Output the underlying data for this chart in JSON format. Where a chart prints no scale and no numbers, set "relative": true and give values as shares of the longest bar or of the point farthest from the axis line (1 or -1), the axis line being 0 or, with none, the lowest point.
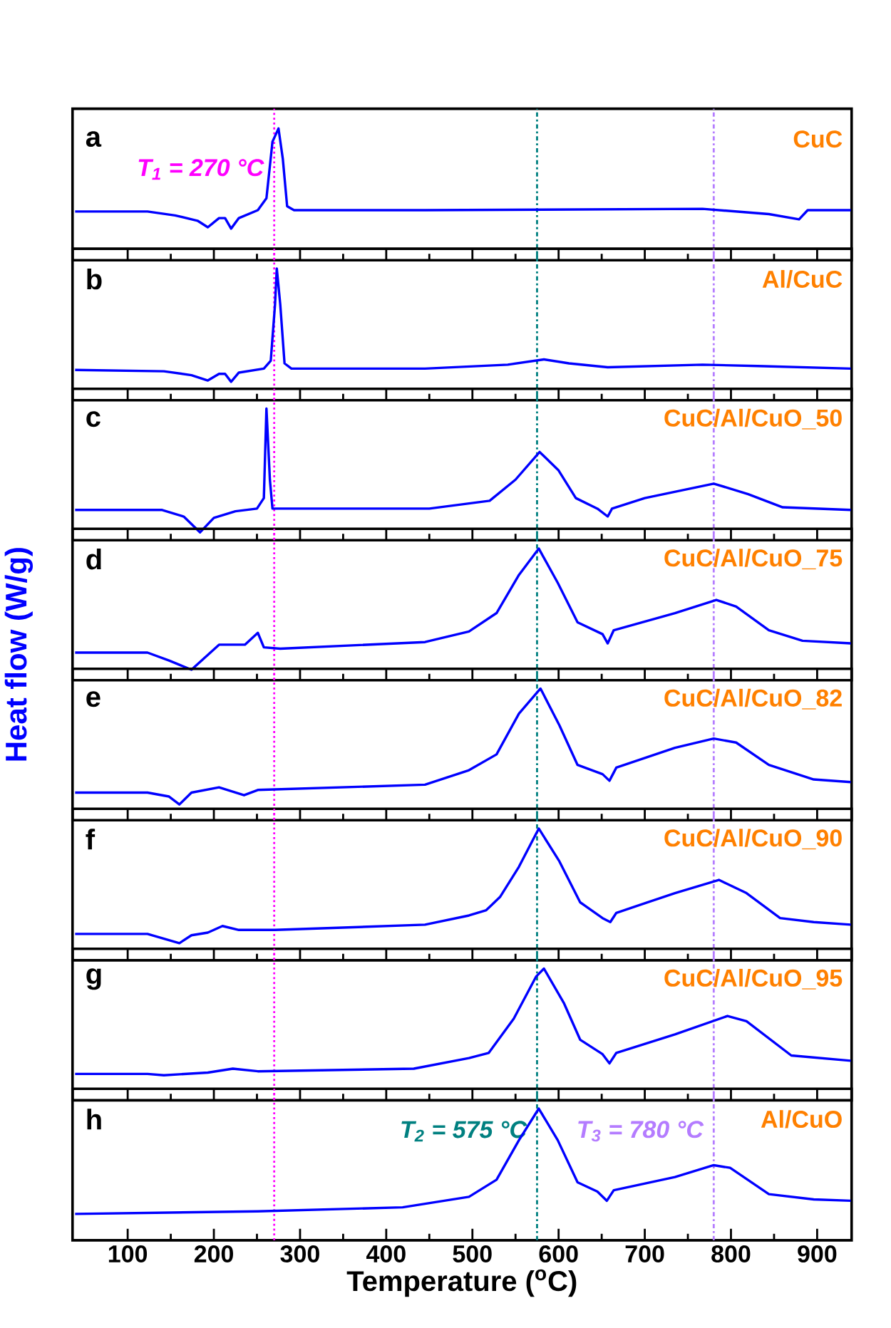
{
  "chart_data": [
    {
      "type": "line",
      "title": "a",
      "relative": true,
      "xlim": [
        36,
        940
      ],
      "xticks": [
        100,
        200,
        300,
        400,
        500,
        600,
        700,
        800,
        900
      ],
      "tick_labels": false,
      "x": [
        39,
        123,
        155,
        181,
        193,
        206,
        213,
        220,
        229,
        251,
        261,
        268,
        275,
        280,
        285,
        293,
        445,
        767,
        844,
        879,
        889,
        939
      ],
      "series": [
        {
          "name": "CuC",
          "color": "#0000ff",
          "values": [
            0.37,
            0.37,
            0.34,
            0.3,
            0.25,
            0.32,
            0.32,
            0.24,
            0.32,
            0.38,
            0.47,
            0.9,
            1,
            0.77,
            0.41,
            0.38,
            0.38,
            0.39,
            0.35,
            0.31,
            0.38,
            0.38
          ]
        }
      ],
      "ref_lines": [
        {
          "axis": "x",
          "value": 270,
          "color": "#ff00ff",
          "line_style": "dotted",
          "label": "T$_{1}$ = 270 °C"
        },
        {
          "axis": "x",
          "value": 575,
          "color": "#008080",
          "line_style": "dashdot"
        },
        {
          "axis": "x",
          "value": 780,
          "color": "#b47cff",
          "line_style": "dashdot"
        }
      ]
    },
    {
      "type": "line",
      "title": "b",
      "relative": true,
      "xlim": [
        36,
        940
      ],
      "xticks": [
        100,
        200,
        300,
        400,
        500,
        600,
        700,
        800,
        900
      ],
      "tick_labels": false,
      "x": [
        39,
        142,
        174,
        193,
        206,
        213,
        220,
        229,
        258,
        266,
        271,
        273,
        277,
        282,
        290,
        445,
        541,
        583,
        612,
        657,
        767,
        831,
        939
      ],
      "series": [
        {
          "name": "Al/CuC",
          "color": "#0000ff",
          "values": [
            0.23,
            0.22,
            0.19,
            0.15,
            0.2,
            0.2,
            0.14,
            0.21,
            0.24,
            0.3,
            0.73,
            1,
            0.73,
            0.28,
            0.24,
            0.24,
            0.27,
            0.31,
            0.28,
            0.25,
            0.27,
            0.26,
            0.24
          ]
        }
      ],
      "ref_lines": [
        {
          "axis": "x",
          "value": 270,
          "color": "#ff00ff",
          "line_style": "dotted"
        },
        {
          "axis": "x",
          "value": 575,
          "color": "#008080",
          "line_style": "dashdot"
        },
        {
          "axis": "x",
          "value": 780,
          "color": "#b47cff",
          "line_style": "dashdot"
        }
      ]
    },
    {
      "type": "line",
      "title": "c",
      "relative": true,
      "xlim": [
        36,
        940
      ],
      "xticks": [
        100,
        200,
        300,
        400,
        500,
        600,
        700,
        800,
        900
      ],
      "tick_labels": false,
      "x": [
        39,
        140,
        165,
        184,
        200,
        225,
        250,
        258,
        261,
        265,
        268,
        300,
        450,
        520,
        550,
        578,
        600,
        620,
        645,
        657,
        662,
        700,
        780,
        820,
        860,
        939
      ],
      "series": [
        {
          "name": "CuC/Al/CuO_50",
          "color": "#0000ff",
          "values": [
            0.23,
            0.23,
            0.18,
            0.06,
            0.17,
            0.22,
            0.24,
            0.32,
            1,
            0.46,
            0.24,
            0.24,
            0.24,
            0.3,
            0.46,
            0.67,
            0.53,
            0.32,
            0.24,
            0.18,
            0.24,
            0.32,
            0.43,
            0.35,
            0.25,
            0.23
          ]
        }
      ],
      "ref_lines": [
        {
          "axis": "x",
          "value": 270,
          "color": "#ff00ff",
          "line_style": "dotted"
        },
        {
          "axis": "x",
          "value": 575,
          "color": "#008080",
          "line_style": "dashdot"
        },
        {
          "axis": "x",
          "value": 780,
          "color": "#b47cff",
          "line_style": "dashdot"
        }
      ]
    },
    {
      "type": "line",
      "title": "d",
      "ylabel": "Heat flow (W/g)",
      "relative": true,
      "xlim": [
        36,
        940
      ],
      "xticks": [
        100,
        200,
        300,
        400,
        500,
        600,
        700,
        800,
        900
      ],
      "tick_labels": false,
      "x": [
        39,
        123,
        148,
        174,
        206,
        236,
        251,
        258,
        277,
        445,
        496,
        528,
        554,
        577,
        599,
        622,
        651,
        657,
        664,
        735,
        783,
        806,
        844,
        883,
        939
      ],
      "series": [
        {
          "name": "CuC/Al/CuO_75",
          "color": "#0000ff",
          "values": [
            0.21,
            0.21,
            0.15,
            0.08,
            0.27,
            0.27,
            0.36,
            0.25,
            0.24,
            0.29,
            0.37,
            0.51,
            0.8,
            1,
            0.74,
            0.44,
            0.35,
            0.28,
            0.38,
            0.51,
            0.61,
            0.56,
            0.38,
            0.3,
            0.28
          ]
        }
      ],
      "ref_lines": [
        {
          "axis": "x",
          "value": 270,
          "color": "#ff00ff",
          "line_style": "dotted"
        },
        {
          "axis": "x",
          "value": 575,
          "color": "#008080",
          "line_style": "dashdot"
        },
        {
          "axis": "x",
          "value": 780,
          "color": "#b47cff",
          "line_style": "dashdot"
        }
      ]
    },
    {
      "type": "line",
      "title": "e",
      "relative": true,
      "xlim": [
        36,
        940
      ],
      "xticks": [
        100,
        200,
        300,
        400,
        500,
        600,
        700,
        800,
        900
      ],
      "tick_labels": false,
      "x": [
        39,
        123,
        148,
        160,
        174,
        206,
        235,
        251,
        445,
        496,
        528,
        554,
        579,
        601,
        622,
        651,
        659,
        667,
        735,
        780,
        806,
        844,
        896,
        939
      ],
      "series": [
        {
          "name": "CuC/Al/CuO_82",
          "color": "#0000ff",
          "values": [
            0.21,
            0.21,
            0.18,
            0.12,
            0.21,
            0.25,
            0.19,
            0.23,
            0.27,
            0.38,
            0.5,
            0.81,
            1,
            0.72,
            0.42,
            0.35,
            0.3,
            0.4,
            0.55,
            0.62,
            0.59,
            0.42,
            0.31,
            0.29
          ]
        }
      ],
      "ref_lines": [
        {
          "axis": "x",
          "value": 270,
          "color": "#ff00ff",
          "line_style": "dotted"
        },
        {
          "axis": "x",
          "value": 575,
          "color": "#008080",
          "line_style": "dashdot"
        },
        {
          "axis": "x",
          "value": 780,
          "color": "#b47cff",
          "line_style": "dashdot"
        }
      ]
    },
    {
      "type": "line",
      "title": "f",
      "relative": true,
      "xlim": [
        36,
        940
      ],
      "xticks": [
        100,
        200,
        300,
        400,
        500,
        600,
        700,
        800,
        900
      ],
      "tick_labels": false,
      "x": [
        39,
        123,
        160,
        174,
        193,
        210,
        229,
        271,
        445,
        496,
        516,
        532,
        554,
        577,
        601,
        625,
        651,
        660,
        667,
        735,
        786,
        818,
        857,
        896,
        939
      ],
      "series": [
        {
          "name": "CuC/Al/CuO_90",
          "color": "#0000ff",
          "values": [
            0.2,
            0.2,
            0.13,
            0.19,
            0.21,
            0.26,
            0.23,
            0.23,
            0.27,
            0.34,
            0.38,
            0.48,
            0.71,
            1,
            0.75,
            0.44,
            0.32,
            0.29,
            0.36,
            0.51,
            0.61,
            0.51,
            0.32,
            0.29,
            0.27
          ]
        }
      ],
      "ref_lines": [
        {
          "axis": "x",
          "value": 270,
          "color": "#ff00ff",
          "line_style": "dotted"
        },
        {
          "axis": "x",
          "value": 575,
          "color": "#008080",
          "line_style": "dashdot"
        },
        {
          "axis": "x",
          "value": 780,
          "color": "#b47cff",
          "line_style": "dashdot"
        }
      ]
    },
    {
      "type": "line",
      "title": "g",
      "relative": true,
      "xlim": [
        36,
        940
      ],
      "xticks": [
        100,
        200,
        300,
        400,
        500,
        600,
        700,
        800,
        900
      ],
      "tick_labels": false,
      "x": [
        39,
        123,
        142,
        193,
        222,
        251,
        432,
        496,
        519,
        548,
        574,
        583,
        606,
        625,
        651,
        659,
        667,
        735,
        796,
        818,
        870,
        939
      ],
      "series": [
        {
          "name": "CuC/Al/CuO_95",
          "color": "#0000ff",
          "values": [
            0.2,
            0.2,
            0.19,
            0.21,
            0.24,
            0.22,
            0.24,
            0.32,
            0.36,
            0.62,
            0.94,
            1,
            0.74,
            0.46,
            0.35,
            0.28,
            0.36,
            0.5,
            0.64,
            0.6,
            0.34,
            0.3
          ]
        }
      ],
      "ref_lines": [
        {
          "axis": "x",
          "value": 270,
          "color": "#ff00ff",
          "line_style": "dotted"
        },
        {
          "axis": "x",
          "value": 575,
          "color": "#008080",
          "line_style": "dashdot"
        },
        {
          "axis": "x",
          "value": 780,
          "color": "#b47cff",
          "line_style": "dashdot"
        }
      ]
    },
    {
      "type": "line",
      "title": "h",
      "xlabel": "Temperature ($^{o}$C)",
      "relative": true,
      "xlim": [
        36,
        940
      ],
      "xticks": [
        100,
        200,
        300,
        400,
        500,
        600,
        700,
        800,
        900
      ],
      "tick_labels": "x",
      "x": [
        39,
        251,
        419,
        496,
        528,
        554,
        577,
        599,
        622,
        645,
        656,
        664,
        735,
        780,
        799,
        844,
        896,
        939
      ],
      "series": [
        {
          "name": "Al/CuO",
          "color": "#0000ff",
          "values": [
            0.2,
            0.22,
            0.25,
            0.33,
            0.46,
            0.76,
            1,
            0.76,
            0.44,
            0.37,
            0.3,
            0.38,
            0.48,
            0.57,
            0.55,
            0.35,
            0.31,
            0.3
          ]
        }
      ],
      "ref_lines": [
        {
          "axis": "x",
          "value": 270,
          "color": "#ff00ff",
          "line_style": "dotted"
        },
        {
          "axis": "x",
          "value": 575,
          "color": "#008080",
          "line_style": "dashdot",
          "label": "T$_{2}$ = 575 °C"
        },
        {
          "axis": "x",
          "value": 780,
          "color": "#b47cff",
          "line_style": "dashdot",
          "label": "T$_{3}$ = 780 °C"
        }
      ]
    }
  ]
}
